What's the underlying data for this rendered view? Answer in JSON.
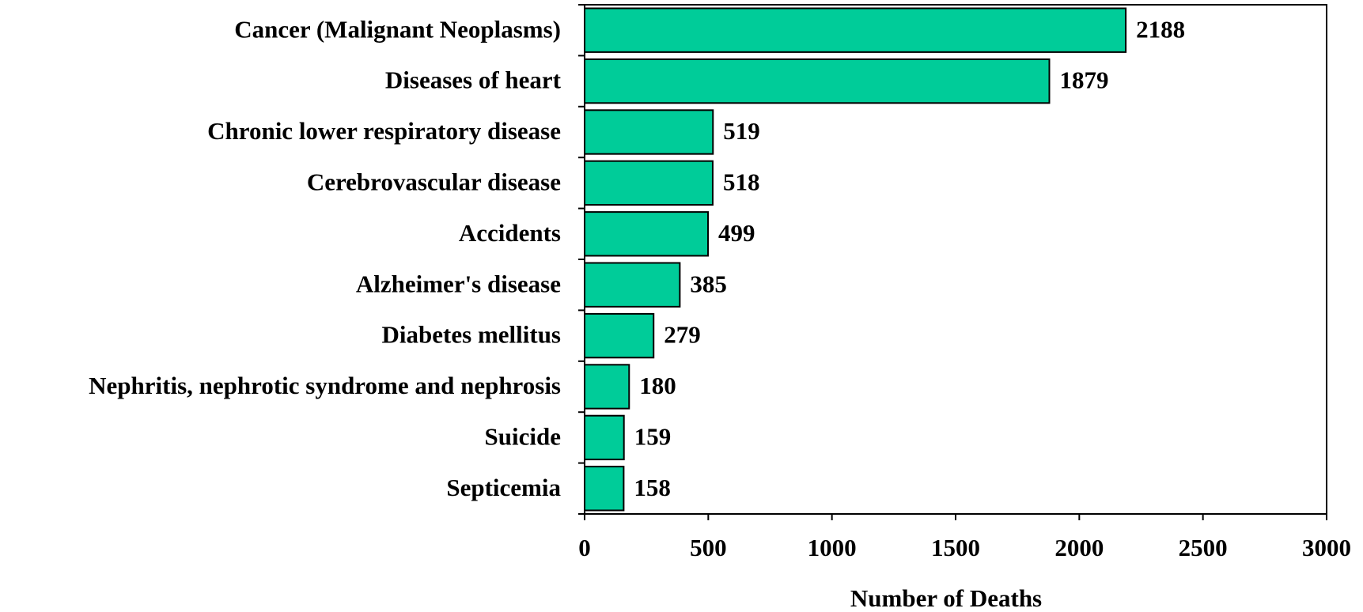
{
  "chart_data": {
    "type": "barh",
    "categories": [
      "Cancer (Malignant Neoplasms)",
      "Diseases of heart",
      "Chronic lower respiratory disease",
      "Cerebrovascular disease",
      "Accidents",
      "Alzheimer's disease",
      "Diabetes mellitus",
      "Nephritis, nephrotic syndrome and nephrosis",
      "Suicide",
      "Septicemia"
    ],
    "values": [
      2188,
      1879,
      519,
      518,
      499,
      385,
      279,
      180,
      159,
      158
    ],
    "color": "#00cc99",
    "x_label": "Number of Deaths",
    "xlim": [
      0,
      3000
    ],
    "xticks": [
      0,
      500,
      1000,
      1500,
      2000,
      2500,
      3000
    ],
    "grid": false
  }
}
